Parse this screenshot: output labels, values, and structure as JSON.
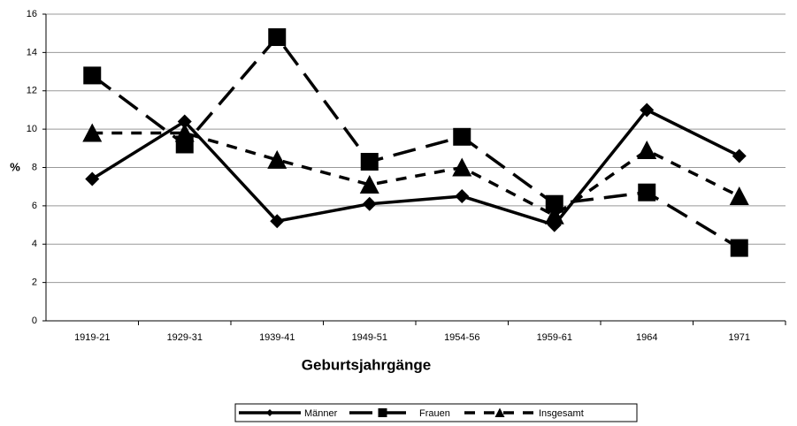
{
  "chart_data": {
    "type": "line",
    "x_label": "Geburtsjahrgänge",
    "y_label": "%",
    "categories": [
      "1919-21",
      "1929-31",
      "1939-41",
      "1949-51",
      "1954-56",
      "1959-61",
      "1964",
      "1971"
    ],
    "series": [
      {
        "name": "Männer",
        "color": "#000000",
        "dash": "solid",
        "marker": "diamond",
        "values": [
          7.4,
          10.4,
          5.2,
          6.1,
          6.5,
          5.0,
          11.0,
          8.6
        ]
      },
      {
        "name": "Frauen",
        "color": "#000000",
        "dash": "long",
        "marker": "square",
        "values": [
          12.8,
          9.2,
          14.8,
          8.3,
          9.6,
          6.1,
          6.7,
          3.8
        ]
      },
      {
        "name": "Insgesamt",
        "color": "#000000",
        "dash": "short",
        "marker": "triangle",
        "values": [
          9.8,
          9.8,
          8.4,
          7.1,
          8.0,
          5.5,
          8.9,
          6.5
        ]
      }
    ],
    "ylim": [
      0,
      16
    ],
    "yticks": [
      0,
      2,
      4,
      6,
      8,
      10,
      12,
      14,
      16
    ],
    "grid": true,
    "legend": "bottom"
  }
}
